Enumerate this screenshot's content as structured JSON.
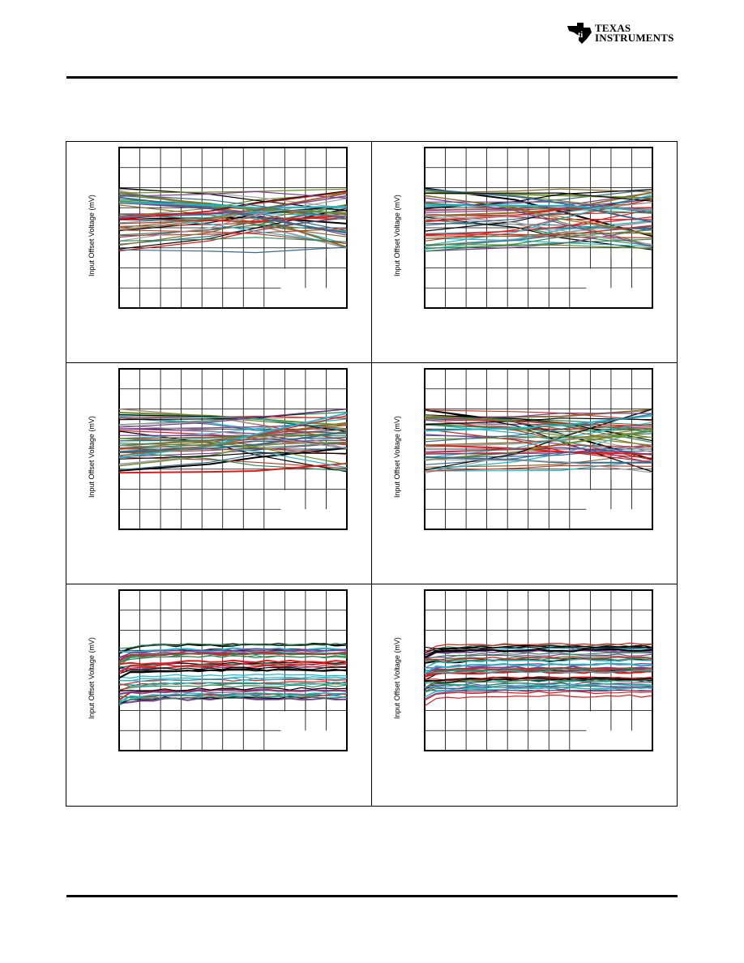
{
  "header": {
    "logo_lines": [
      "TEXAS",
      "INSTRUMENTS"
    ],
    "logo_icon": "ti-state-logo-icon"
  },
  "figures": [
    {
      "id": "plot-1",
      "ylabel": "Input Offset Voltage (mV)"
    },
    {
      "id": "plot-2",
      "ylabel": "Input Offset Voltage (mV)"
    },
    {
      "id": "plot-3",
      "ylabel": "Input Offset Voltage (mV)"
    },
    {
      "id": "plot-4",
      "ylabel": "Input Offset Voltage (mV)"
    },
    {
      "id": "plot-5",
      "ylabel": "Input Offset Voltage (mV)"
    },
    {
      "id": "plot-6",
      "ylabel": "Input Offset Voltage (mV)"
    }
  ],
  "colors": {
    "series": [
      "#000000",
      "#e0191b",
      "#1fb5c9",
      "#7b3d8f",
      "#8b6e2e",
      "#3a6b8c",
      "#c0392b",
      "#a0a0a0",
      "#6b8e23",
      "#2e8b57"
    ]
  }
}
